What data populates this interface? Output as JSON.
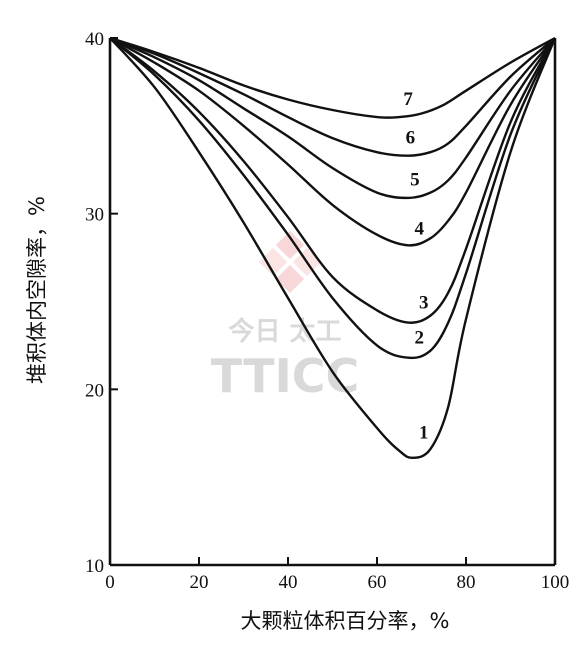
{
  "chart_data": {
    "type": "line",
    "xlabel": "大颗粒体积百分率，%",
    "ylabel": "堆积体内空隙率，%",
    "xlim": [
      0,
      100
    ],
    "ylim": [
      10,
      40
    ],
    "x_ticks": [
      "0",
      "20",
      "40",
      "60",
      "80",
      "100"
    ],
    "y_ticks": [
      "10",
      "20",
      "30",
      "40"
    ],
    "grid": false,
    "series": [
      {
        "name": "1",
        "x": [
          0,
          10,
          20,
          30,
          40,
          50,
          60,
          65,
          68,
          72,
          76,
          80,
          90,
          100
        ],
        "y": [
          40,
          37.2,
          33.5,
          29.5,
          25.2,
          21.0,
          17.8,
          16.5,
          16.1,
          16.6,
          19.0,
          24.0,
          33.5,
          40
        ]
      },
      {
        "name": "2",
        "x": [
          0,
          10,
          20,
          30,
          40,
          50,
          60,
          67,
          72,
          76,
          80,
          90,
          100
        ],
        "y": [
          40,
          37.9,
          35.3,
          32.2,
          28.8,
          25.2,
          22.5,
          21.8,
          22.2,
          23.8,
          26.6,
          34.5,
          40
        ]
      },
      {
        "name": "3",
        "x": [
          0,
          10,
          20,
          30,
          40,
          50,
          60,
          67,
          72,
          76,
          80,
          90,
          100
        ],
        "y": [
          40,
          38.1,
          35.8,
          33.0,
          29.8,
          26.4,
          24.5,
          23.8,
          24.2,
          25.5,
          28.0,
          35.2,
          40
        ]
      },
      {
        "name": "4",
        "x": [
          0,
          10,
          20,
          30,
          40,
          50,
          60,
          67,
          72,
          76,
          80,
          90,
          100
        ],
        "y": [
          40,
          38.6,
          37.0,
          35.0,
          32.8,
          30.5,
          28.8,
          28.2,
          28.6,
          29.6,
          31.2,
          36.2,
          40
        ]
      },
      {
        "name": "5",
        "x": [
          0,
          10,
          20,
          30,
          40,
          50,
          60,
          67,
          72,
          76,
          80,
          90,
          100
        ],
        "y": [
          40,
          38.9,
          37.6,
          36.0,
          34.4,
          32.6,
          31.2,
          30.9,
          31.2,
          31.9,
          33.2,
          37.0,
          40
        ]
      },
      {
        "name": "6",
        "x": [
          0,
          10,
          20,
          30,
          40,
          50,
          60,
          67,
          72,
          76,
          80,
          90,
          100
        ],
        "y": [
          40,
          39.1,
          38.0,
          36.8,
          35.5,
          34.3,
          33.5,
          33.3,
          33.5,
          34.0,
          35.0,
          37.8,
          40
        ]
      },
      {
        "name": "7",
        "x": [
          0,
          10,
          20,
          30,
          40,
          50,
          60,
          65,
          70,
          75,
          80,
          90,
          100
        ],
        "y": [
          40,
          39.2,
          38.3,
          37.3,
          36.5,
          35.9,
          35.5,
          35.5,
          35.7,
          36.2,
          37.0,
          38.6,
          40
        ]
      }
    ],
    "curve_labels": [
      {
        "text": "1",
        "x": 70.5,
        "y": 17.2
      },
      {
        "text": "2",
        "x": 69.5,
        "y": 22.6
      },
      {
        "text": "3",
        "x": 70.5,
        "y": 24.6
      },
      {
        "text": "4",
        "x": 69.5,
        "y": 28.8
      },
      {
        "text": "5",
        "x": 68.5,
        "y": 31.6
      },
      {
        "text": "6",
        "x": 67.5,
        "y": 34.0
      },
      {
        "text": "7",
        "x": 67.0,
        "y": 36.2
      }
    ]
  },
  "watermark": {
    "line1": "今日  太工",
    "line2": "TTICC",
    "colors": {
      "diamond": "#f2b8b8",
      "text": "#d9d9d9"
    }
  }
}
